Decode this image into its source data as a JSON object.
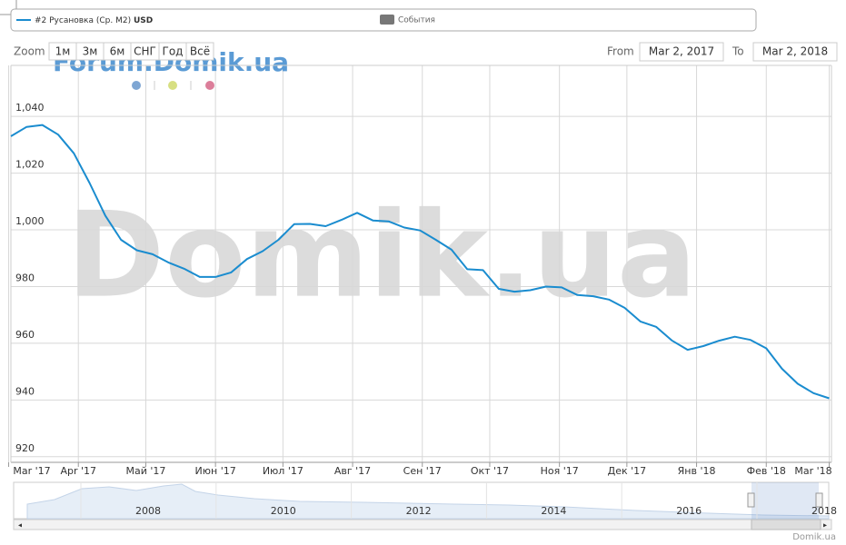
{
  "chart_data": {
    "type": "line",
    "series": [
      {
        "name": "#2 Русановка (Ср. М2)",
        "unit": "USD",
        "color": "#1a8ccf",
        "x": [
          "2017-03-02",
          "2017-03-09",
          "2017-03-16",
          "2017-03-23",
          "2017-03-30",
          "2017-04-06",
          "2017-04-13",
          "2017-04-20",
          "2017-04-27",
          "2017-05-04",
          "2017-05-11",
          "2017-05-18",
          "2017-05-25",
          "2017-06-01",
          "2017-06-08",
          "2017-06-15",
          "2017-06-22",
          "2017-06-29",
          "2017-07-06",
          "2017-07-13",
          "2017-07-20",
          "2017-07-27",
          "2017-08-03",
          "2017-08-10",
          "2017-08-17",
          "2017-08-24",
          "2017-08-31",
          "2017-09-07",
          "2017-09-14",
          "2017-09-21",
          "2017-09-28",
          "2017-10-05",
          "2017-10-12",
          "2017-10-19",
          "2017-10-26",
          "2017-11-02",
          "2017-11-09",
          "2017-11-16",
          "2017-11-23",
          "2017-11-30",
          "2017-12-07",
          "2017-12-14",
          "2017-12-21",
          "2017-12-28",
          "2018-01-04",
          "2018-01-11",
          "2018-01-18",
          "2018-01-25",
          "2018-02-01",
          "2018-02-08",
          "2018-02-15",
          "2018-02-22",
          "2018-03-01"
        ],
        "values": [
          1033,
          1036.3,
          1037,
          1033.6,
          1027,
          1016.5,
          1005,
          996.5,
          992.8,
          991.4,
          988.5,
          986.3,
          983.4,
          983.4,
          985,
          989.7,
          992.5,
          996.5,
          1002,
          1002.1,
          1001.3,
          1003.5,
          1006,
          1003.3,
          1003,
          1000.8,
          999.8,
          996.5,
          993,
          986.1,
          985.8,
          979.2,
          978.2,
          978.7,
          980,
          979.7,
          977,
          976.6,
          975.4,
          972.5,
          967.7,
          965.8,
          961,
          957.7,
          959,
          960.9,
          962.3,
          961.2,
          958.2,
          951,
          945.7,
          942.4,
          940.6
        ]
      }
    ],
    "events_label": "События",
    "xlim": [
      "Mar 2, 2017",
      "Mar 2, 2018"
    ],
    "xticks": [
      {
        "value": "2017-03-01",
        "label": "Mar '17"
      },
      {
        "value": "2017-04-01",
        "label": "Apr '17"
      },
      {
        "value": "2017-05-01",
        "label": "Май '17"
      },
      {
        "value": "2017-06-01",
        "label": "Июн '17"
      },
      {
        "value": "2017-07-01",
        "label": "Июл '17"
      },
      {
        "value": "2017-08-01",
        "label": "Авг '17"
      },
      {
        "value": "2017-09-01",
        "label": "Сен '17"
      },
      {
        "value": "2017-10-01",
        "label": "Окт '17"
      },
      {
        "value": "2017-11-01",
        "label": "Ноя '17"
      },
      {
        "value": "2017-12-01",
        "label": "Дек '17"
      },
      {
        "value": "2018-01-01",
        "label": "Янв '18"
      },
      {
        "value": "2018-02-01",
        "label": "Фев '18"
      },
      {
        "value": "2018-03-01",
        "label": "Mar '18"
      }
    ],
    "ylim": [
      918,
      1058
    ],
    "yticks": [
      920,
      940,
      960,
      980,
      {
        "value": 1000,
        "label": "1,000"
      },
      {
        "value": 1020,
        "label": "1,020"
      },
      {
        "value": 1040,
        "label": "1,040"
      }
    ],
    "grid": true,
    "watermark": "Domik.ua",
    "forum_watermark": "Forum.Domik.ua",
    "navigator_labels": [
      "2008",
      "2010",
      "2012",
      "2014",
      "2016",
      "2018"
    ],
    "credits": "Domik.ua"
  },
  "range_selector": {
    "zoom_label": "Zoom",
    "buttons": [
      "1м",
      "3м",
      "6м",
      "СНГ",
      "Год",
      "Всё"
    ],
    "from_label": "From",
    "to_label": "To"
  }
}
